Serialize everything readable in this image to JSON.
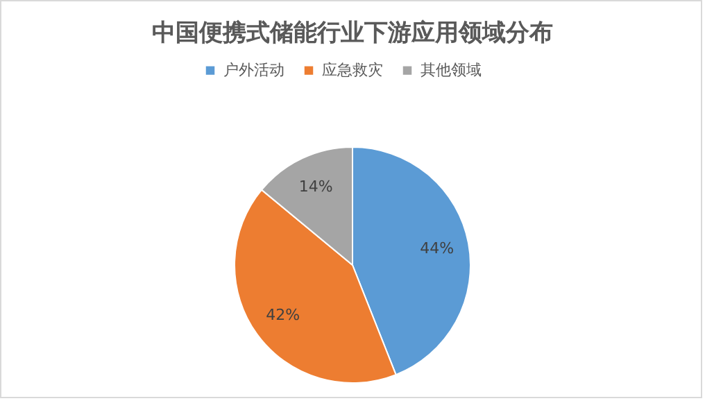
{
  "chart_data": {
    "type": "pie",
    "title": "中国便携式储能行业下游应用领域分布",
    "categories": [
      "户外活动",
      "应急救灾",
      "其他领域"
    ],
    "values": [
      44,
      42,
      14
    ],
    "colors": [
      "#5b9bd5",
      "#ed7d31",
      "#a5a5a5"
    ],
    "value_labels": [
      "44%",
      "42%",
      "14%"
    ],
    "legend": "top"
  }
}
